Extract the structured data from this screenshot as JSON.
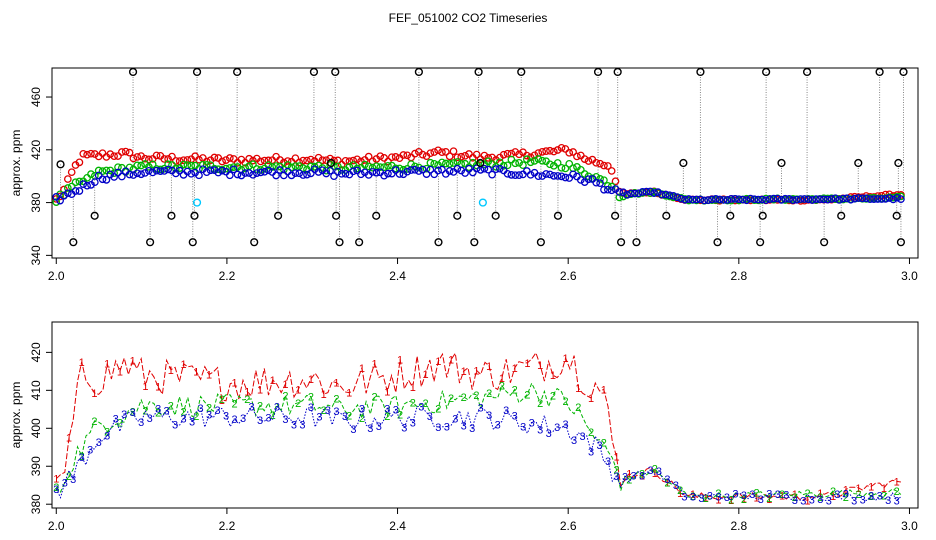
{
  "title": "FEF_051002  CO2 Timeseries",
  "chart_data": [
    {
      "type": "scatter",
      "panel": "top",
      "ylabel": "approx. ppm",
      "xlim": [
        1.995,
        3.01
      ],
      "ylim": [
        338,
        482
      ],
      "xticks": [
        "2.0",
        "2.2",
        "2.4",
        "2.6",
        "2.8",
        "3.0"
      ],
      "yticks": [
        "340",
        "380",
        "420",
        "460"
      ],
      "series": [
        {
          "color": "#000000",
          "marker": "open-circle",
          "points": [
            [
              2.005,
              409
            ],
            [
              2.02,
              350
            ],
            [
              2.045,
              370
            ],
            [
              2.09,
              479
            ],
            [
              2.11,
              350
            ],
            [
              2.135,
              370
            ],
            [
              2.16,
              350
            ],
            [
              2.162,
              370
            ],
            [
              2.165,
              479
            ],
            [
              2.212,
              479
            ],
            [
              2.232,
              350
            ],
            [
              2.26,
              370
            ],
            [
              2.302,
              479
            ],
            [
              2.322,
              410
            ],
            [
              2.327,
              479
            ],
            [
              2.328,
              370
            ],
            [
              2.332,
              350
            ],
            [
              2.355,
              350
            ],
            [
              2.375,
              370
            ],
            [
              2.425,
              479
            ],
            [
              2.448,
              350
            ],
            [
              2.47,
              370
            ],
            [
              2.49,
              350
            ],
            [
              2.495,
              479
            ],
            [
              2.497,
              410
            ],
            [
              2.515,
              370
            ],
            [
              2.545,
              479
            ],
            [
              2.568,
              350
            ],
            [
              2.588,
              370
            ],
            [
              2.635,
              479
            ],
            [
              2.655,
              370
            ],
            [
              2.658,
              479
            ],
            [
              2.662,
              350
            ],
            [
              2.68,
              350
            ],
            [
              2.715,
              370
            ],
            [
              2.735,
              410
            ],
            [
              2.755,
              479
            ],
            [
              2.775,
              350
            ],
            [
              2.79,
              370
            ],
            [
              2.825,
              350
            ],
            [
              2.828,
              370
            ],
            [
              2.832,
              479
            ],
            [
              2.85,
              410
            ],
            [
              2.88,
              479
            ],
            [
              2.9,
              350
            ],
            [
              2.92,
              370
            ],
            [
              2.94,
              410
            ],
            [
              2.965,
              479
            ],
            [
              2.985,
              370
            ],
            [
              2.987,
              410
            ],
            [
              2.99,
              350
            ],
            [
              2.993,
              479
            ]
          ]
        },
        {
          "color": "#00c8ff",
          "marker": "open-circle",
          "points": [
            [
              2.165,
              380
            ],
            [
              2.5,
              380
            ]
          ]
        }
      ],
      "lines": [
        {
          "color": "#e00000",
          "knots": [
            [
              2.0,
              382
            ],
            [
              2.01,
              390
            ],
            [
              2.02,
              405
            ],
            [
              2.03,
              415
            ],
            [
              2.08,
              417
            ],
            [
              2.1,
              414
            ],
            [
              2.2,
              412
            ],
            [
              2.3,
              413
            ],
            [
              2.33,
              411
            ],
            [
              2.4,
              414
            ],
            [
              2.45,
              418
            ],
            [
              2.5,
              414
            ],
            [
              2.56,
              417
            ],
            [
              2.6,
              420
            ],
            [
              2.62,
              413
            ],
            [
              2.65,
              408
            ],
            [
              2.66,
              386
            ],
            [
              2.7,
              388
            ],
            [
              2.74,
              382
            ],
            [
              2.9,
              382
            ],
            [
              2.96,
              385
            ],
            [
              2.99,
              386
            ]
          ]
        },
        {
          "color": "#00b400",
          "knots": [
            [
              2.0,
              382
            ],
            [
              2.02,
              392
            ],
            [
              2.05,
              403
            ],
            [
              2.1,
              407
            ],
            [
              2.2,
              407
            ],
            [
              2.3,
              407
            ],
            [
              2.33,
              406
            ],
            [
              2.4,
              407
            ],
            [
              2.5,
              409
            ],
            [
              2.56,
              411
            ],
            [
              2.6,
              408
            ],
            [
              2.63,
              400
            ],
            [
              2.655,
              392
            ],
            [
              2.66,
              386
            ],
            [
              2.7,
              388
            ],
            [
              2.74,
              382
            ],
            [
              2.96,
              383
            ],
            [
              2.99,
              384
            ]
          ]
        },
        {
          "color": "#0000c8",
          "knots": [
            [
              2.0,
              382
            ],
            [
              2.02,
              388
            ],
            [
              2.05,
              399
            ],
            [
              2.1,
              403
            ],
            [
              2.2,
              403
            ],
            [
              2.3,
              403
            ],
            [
              2.33,
              402
            ],
            [
              2.4,
              403
            ],
            [
              2.5,
              404
            ],
            [
              2.6,
              400
            ],
            [
              2.63,
              396
            ],
            [
              2.655,
              388
            ],
            [
              2.66,
              386
            ],
            [
              2.7,
              388
            ],
            [
              2.74,
              382
            ],
            [
              2.99,
              383
            ]
          ]
        }
      ]
    },
    {
      "type": "line",
      "panel": "bottom",
      "ylabel": "approx. ppm",
      "xlim": [
        1.995,
        3.01
      ],
      "ylim": [
        379,
        428
      ],
      "xticks": [
        "2.0",
        "2.2",
        "2.4",
        "2.6",
        "2.8",
        "3.0"
      ],
      "yticks": [
        "380",
        "390",
        "400",
        "410",
        "420"
      ],
      "series": [
        {
          "name": "1",
          "color": "#e00000",
          "marker_char": "1",
          "knots": [
            [
              2.0,
              383
            ],
            [
              2.01,
              388
            ],
            [
              2.02,
              402
            ],
            [
              2.03,
              414
            ],
            [
              2.05,
              413
            ],
            [
              2.08,
              417
            ],
            [
              2.1,
              414
            ],
            [
              2.2,
              412
            ],
            [
              2.3,
              413
            ],
            [
              2.33,
              411
            ],
            [
              2.4,
              414
            ],
            [
              2.45,
              417
            ],
            [
              2.5,
              414
            ],
            [
              2.56,
              416
            ],
            [
              2.6,
              419
            ],
            [
              2.62,
              413
            ],
            [
              2.64,
              410
            ],
            [
              2.66,
              387
            ],
            [
              2.7,
              389
            ],
            [
              2.74,
              382
            ],
            [
              2.9,
              382
            ],
            [
              2.96,
              385
            ],
            [
              2.99,
              386
            ]
          ]
        },
        {
          "name": "2",
          "color": "#00b400",
          "marker_char": "2",
          "knots": [
            [
              2.0,
              382
            ],
            [
              2.02,
              392
            ],
            [
              2.05,
              401
            ],
            [
              2.1,
              406
            ],
            [
              2.2,
              406
            ],
            [
              2.3,
              406
            ],
            [
              2.33,
              405
            ],
            [
              2.4,
              406
            ],
            [
              2.5,
              408
            ],
            [
              2.56,
              410
            ],
            [
              2.6,
              407
            ],
            [
              2.63,
              398
            ],
            [
              2.655,
              391
            ],
            [
              2.66,
              386
            ],
            [
              2.7,
              389
            ],
            [
              2.74,
              382
            ],
            [
              2.96,
              383
            ],
            [
              2.99,
              383
            ]
          ]
        },
        {
          "name": "3",
          "color": "#0000c8",
          "marker_char": "3",
          "knots": [
            [
              2.0,
              383
            ],
            [
              2.02,
              388
            ],
            [
              2.05,
              398
            ],
            [
              2.1,
              403
            ],
            [
              2.2,
              403
            ],
            [
              2.3,
              403
            ],
            [
              2.33,
              402
            ],
            [
              2.4,
              403
            ],
            [
              2.5,
              403
            ],
            [
              2.6,
              400
            ],
            [
              2.63,
              396
            ],
            [
              2.655,
              388
            ],
            [
              2.66,
              386
            ],
            [
              2.7,
              389
            ],
            [
              2.74,
              382
            ],
            [
              2.99,
              382
            ]
          ]
        }
      ]
    }
  ]
}
